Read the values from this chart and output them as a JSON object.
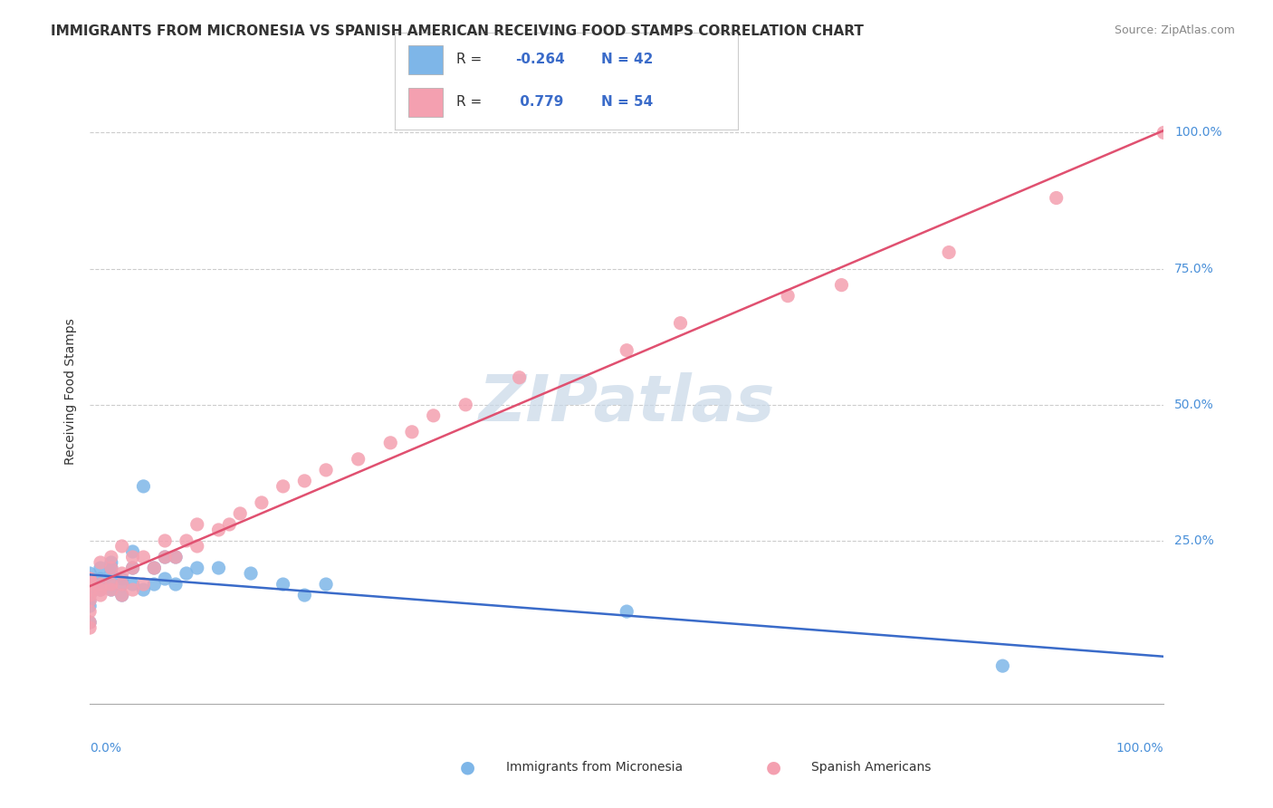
{
  "title": "IMMIGRANTS FROM MICRONESIA VS SPANISH AMERICAN RECEIVING FOOD STAMPS CORRELATION CHART",
  "source_text": "Source: ZipAtlas.com",
  "ylabel": "Receiving Food Stamps",
  "xlim": [
    0,
    1
  ],
  "ylim": [
    -0.05,
    1.1
  ],
  "grid_color": "#cccccc",
  "background_color": "#ffffff",
  "series": [
    {
      "name": "Immigrants from Micronesia",
      "R": -0.264,
      "N": 42,
      "color": "#7eb6e8",
      "trend_color": "#3a6bc9",
      "x": [
        0.0,
        0.0,
        0.0,
        0.0,
        0.0,
        0.0,
        0.0,
        0.0,
        0.0,
        0.0,
        0.01,
        0.01,
        0.01,
        0.01,
        0.02,
        0.02,
        0.02,
        0.02,
        0.02,
        0.03,
        0.03,
        0.03,
        0.04,
        0.04,
        0.04,
        0.05,
        0.05,
        0.06,
        0.06,
        0.07,
        0.07,
        0.08,
        0.08,
        0.09,
        0.1,
        0.12,
        0.15,
        0.18,
        0.2,
        0.22,
        0.5,
        0.85
      ],
      "y": [
        0.15,
        0.16,
        0.17,
        0.17,
        0.18,
        0.18,
        0.19,
        0.13,
        0.14,
        0.1,
        0.16,
        0.17,
        0.18,
        0.2,
        0.16,
        0.17,
        0.19,
        0.2,
        0.21,
        0.15,
        0.17,
        0.18,
        0.17,
        0.2,
        0.23,
        0.16,
        0.35,
        0.17,
        0.2,
        0.18,
        0.22,
        0.17,
        0.22,
        0.19,
        0.2,
        0.2,
        0.19,
        0.17,
        0.15,
        0.17,
        0.12,
        0.02
      ]
    },
    {
      "name": "Spanish Americans",
      "R": 0.779,
      "N": 54,
      "color": "#f4a0b0",
      "trend_color": "#e05070",
      "x": [
        0.0,
        0.0,
        0.0,
        0.0,
        0.0,
        0.0,
        0.0,
        0.0,
        0.0,
        0.0,
        0.01,
        0.01,
        0.01,
        0.01,
        0.02,
        0.02,
        0.02,
        0.02,
        0.03,
        0.03,
        0.03,
        0.03,
        0.04,
        0.04,
        0.04,
        0.05,
        0.05,
        0.06,
        0.07,
        0.07,
        0.08,
        0.09,
        0.1,
        0.1,
        0.12,
        0.13,
        0.14,
        0.16,
        0.18,
        0.2,
        0.22,
        0.25,
        0.28,
        0.3,
        0.32,
        0.35,
        0.4,
        0.5,
        0.55,
        0.65,
        0.7,
        0.8,
        0.9,
        1.0
      ],
      "y": [
        0.14,
        0.15,
        0.16,
        0.17,
        0.17,
        0.18,
        0.18,
        0.1,
        0.12,
        0.09,
        0.15,
        0.16,
        0.17,
        0.21,
        0.16,
        0.17,
        0.2,
        0.22,
        0.15,
        0.17,
        0.19,
        0.24,
        0.16,
        0.2,
        0.22,
        0.17,
        0.22,
        0.2,
        0.22,
        0.25,
        0.22,
        0.25,
        0.24,
        0.28,
        0.27,
        0.28,
        0.3,
        0.32,
        0.35,
        0.36,
        0.38,
        0.4,
        0.43,
        0.45,
        0.48,
        0.5,
        0.55,
        0.6,
        0.65,
        0.7,
        0.72,
        0.78,
        0.88,
        1.0
      ]
    }
  ],
  "watermark_color": "#c8d8e8",
  "title_fontsize": 11,
  "axis_label_fontsize": 10,
  "tick_fontsize": 10,
  "legend_fontsize": 11,
  "source_fontsize": 9
}
